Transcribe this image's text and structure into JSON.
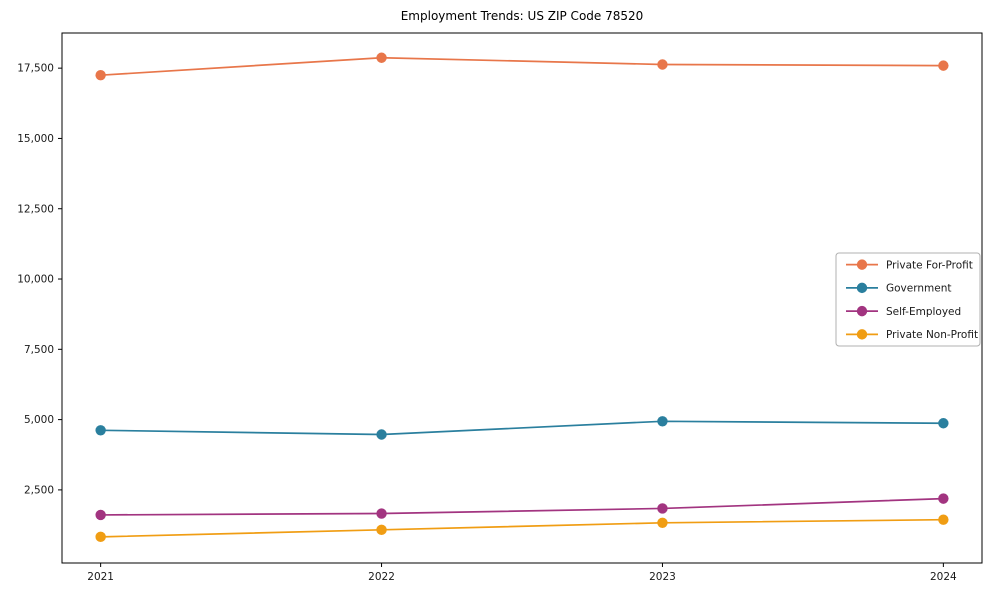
{
  "chart_data": {
    "type": "line",
    "title": "Employment Trends: US ZIP Code 78520",
    "x_tick_labels": [
      "2021",
      "2022",
      "2023",
      "2024"
    ],
    "y_ticks": [
      2500,
      5000,
      7500,
      10000,
      12500,
      15000,
      17500
    ],
    "y_tick_labels": [
      "2,500",
      "5,000",
      "7,500",
      "10,000",
      "12,500",
      "15,000",
      "17,500"
    ],
    "ylim": [
      -100,
      18750
    ],
    "xlabel": "",
    "ylabel": "",
    "grid": false,
    "marker": "circle",
    "legend_position": "right-middle",
    "series": [
      {
        "name": "Private For-Profit",
        "color": "#e8764a",
        "values": [
          17250,
          17870,
          17630,
          17590
        ]
      },
      {
        "name": "Government",
        "color": "#2a7f9e",
        "values": [
          4620,
          4470,
          4940,
          4870
        ]
      },
      {
        "name": "Self-Employed",
        "color": "#a23480",
        "values": [
          1610,
          1660,
          1840,
          2190
        ]
      },
      {
        "name": "Private Non-Profit",
        "color": "#f09d13",
        "values": [
          830,
          1080,
          1330,
          1440
        ]
      }
    ],
    "colors": {
      "axis": "#000000",
      "tick_label": "#1a1a1a",
      "legend_border": "#b0b0b0",
      "background": "#ffffff"
    }
  }
}
